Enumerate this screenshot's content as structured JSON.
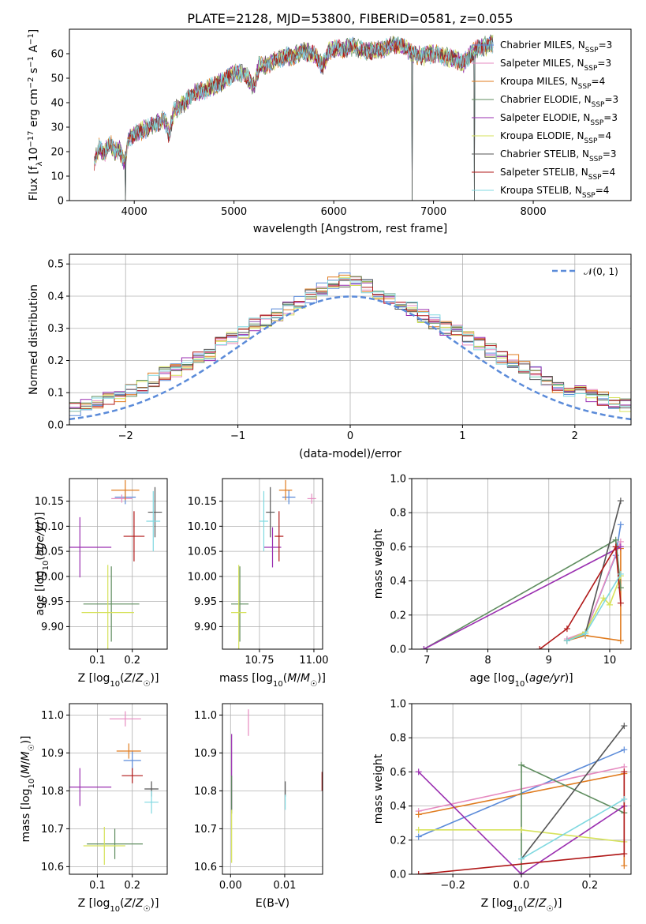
{
  "colors": {
    "chabrier_miles": "#5b8bd9",
    "salpeter_miles": "#e68ac0",
    "kroupa_miles": "#e07b1e",
    "chabrier_elodie": "#5f8d5f",
    "salpeter_elodie": "#9a2fb0",
    "kroupa_elodie": "#d6e25a",
    "chabrier_stelib": "#555555",
    "salpeter_stelib": "#b01818",
    "kroupa_stelib": "#7fd8e0",
    "gauss": "#5b8bd9"
  },
  "chart_data": [
    {
      "id": "spectrum",
      "type": "line",
      "title": "PLATE=2128, MJD=53800, FIBERID=0581, z=0.055",
      "xlabel": "wavelength [Angstrom, rest frame]",
      "ylabel": "Flux [f_λ 10^-17 erg cm^-2 s^-1 A^-1]",
      "xlim": [
        3350,
        8980
      ],
      "ylim": [
        0,
        70
      ],
      "xticks": [
        "4000",
        "5000",
        "6000",
        "7000",
        "8000"
      ],
      "yticks": [
        "0",
        "10",
        "20",
        "30",
        "40",
        "50",
        "60"
      ],
      "grid": false,
      "legend_position": "top-right",
      "continuum_points": [
        [
          3600,
          16
        ],
        [
          3650,
          22
        ],
        [
          3700,
          19
        ],
        [
          3750,
          24
        ],
        [
          3800,
          20
        ],
        [
          3850,
          21
        ],
        [
          3900,
          15
        ],
        [
          3950,
          26
        ],
        [
          4000,
          27
        ],
        [
          4100,
          29
        ],
        [
          4200,
          31
        ],
        [
          4300,
          33
        ],
        [
          4350,
          27
        ],
        [
          4400,
          37
        ],
        [
          4500,
          40
        ],
        [
          4600,
          44
        ],
        [
          4700,
          45
        ],
        [
          4800,
          47
        ],
        [
          4900,
          49
        ],
        [
          5000,
          52
        ],
        [
          5100,
          52
        ],
        [
          5175,
          48
        ],
        [
          5200,
          46
        ],
        [
          5250,
          55
        ],
        [
          5300,
          55
        ],
        [
          5400,
          57
        ],
        [
          5500,
          59
        ],
        [
          5600,
          59
        ],
        [
          5700,
          61
        ],
        [
          5800,
          60
        ],
        [
          5890,
          55
        ],
        [
          5950,
          61
        ],
        [
          6000,
          62
        ],
        [
          6100,
          62
        ],
        [
          6200,
          63
        ],
        [
          6300,
          61
        ],
        [
          6400,
          61
        ],
        [
          6500,
          62
        ],
        [
          6563,
          63
        ],
        [
          6600,
          64
        ],
        [
          6700,
          63
        ],
        [
          6800,
          60
        ],
        [
          6900,
          59
        ],
        [
          7000,
          60
        ],
        [
          7100,
          59
        ],
        [
          7200,
          58
        ],
        [
          7300,
          56
        ],
        [
          7400,
          61
        ],
        [
          7500,
          63
        ],
        [
          7600,
          64
        ]
      ],
      "features": [
        {
          "x": 3910,
          "y": 0
        },
        {
          "x": 6785,
          "y": 0
        },
        {
          "x": 7410,
          "y": 0
        }
      ],
      "series": [
        {
          "name": "Chabrier MILES, N_SSP=3",
          "label_main": "Chabrier MILES, N",
          "label_sub": "SSP",
          "label_end": "=3",
          "color_key": "chabrier_miles"
        },
        {
          "name": "Salpeter MILES, N_SSP=3",
          "label_main": "Salpeter MILES, N",
          "label_sub": "SSP",
          "label_end": "=3",
          "color_key": "salpeter_miles"
        },
        {
          "name": "Kroupa MILES, N_SSP=4",
          "label_main": "Kroupa MILES, N",
          "label_sub": "SSP",
          "label_end": "=4",
          "color_key": "kroupa_miles"
        },
        {
          "name": "Chabrier ELODIE, N_SSP=3",
          "label_main": "Chabrier ELODIE, N",
          "label_sub": "SSP",
          "label_end": "=3",
          "color_key": "chabrier_elodie"
        },
        {
          "name": "Salpeter ELODIE, N_SSP=3",
          "label_main": "Salpeter ELODIE, N",
          "label_sub": "SSP",
          "label_end": "=3",
          "color_key": "salpeter_elodie"
        },
        {
          "name": "Kroupa ELODIE, N_SSP=4",
          "label_main": "Kroupa ELODIE, N",
          "label_sub": "SSP",
          "label_end": "=4",
          "color_key": "kroupa_elodie"
        },
        {
          "name": "Chabrier STELIB, N_SSP=3",
          "label_main": "Chabrier STELIB, N",
          "label_sub": "SSP",
          "label_end": "=3",
          "color_key": "chabrier_stelib"
        },
        {
          "name": "Salpeter STELIB, N_SSP=4",
          "label_main": "Salpeter STELIB, N",
          "label_sub": "SSP",
          "label_end": "=4",
          "color_key": "salpeter_stelib"
        },
        {
          "name": "Kroupa STELIB, N_SSP=4",
          "label_main": "Kroupa STELIB, N",
          "label_sub": "SSP",
          "label_end": "=4",
          "color_key": "kroupa_stelib"
        }
      ]
    },
    {
      "id": "residuals",
      "type": "line",
      "xlabel": "(data-model)/error",
      "ylabel": "Normed distribution",
      "xlim": [
        -2.5,
        2.5
      ],
      "ylim": [
        0,
        0.53
      ],
      "xticks": [
        "−2",
        "−1",
        "0",
        "1",
        "2"
      ],
      "yticks": [
        "0.0",
        "0.1",
        "0.2",
        "0.3",
        "0.4",
        "0.5"
      ],
      "grid": true,
      "legend_position": "top-right",
      "legend_label": "𝒩(0, 1)",
      "bin_width": 0.1,
      "histogram_values": [
        0.02,
        0.02,
        0.03,
        0.03,
        0.04,
        0.05,
        0.06,
        0.07,
        0.08,
        0.09,
        0.11,
        0.12,
        0.14,
        0.16,
        0.17,
        0.19,
        0.21,
        0.22,
        0.25,
        0.27,
        0.29,
        0.31,
        0.32,
        0.34,
        0.36,
        0.38,
        0.4,
        0.42,
        0.44,
        0.45,
        0.44,
        0.43,
        0.41,
        0.39,
        0.38,
        0.36,
        0.34,
        0.32,
        0.3,
        0.29,
        0.27,
        0.25,
        0.23,
        0.21,
        0.2,
        0.18,
        0.16,
        0.14,
        0.12,
        0.11,
        0.1,
        0.09,
        0.08,
        0.07,
        0.06,
        0.05,
        0.05,
        0.04,
        0.03,
        0.03
      ]
    },
    {
      "id": "age-vs-z",
      "type": "scatter",
      "xlabel": "Z [log10(Z/Z☉)]",
      "ylabel": "age [log10(age/yr)]",
      "xlim": [
        0.02,
        0.3
      ],
      "ylim": [
        9.855,
        10.195
      ],
      "xticks": [
        "0.1",
        "0.2"
      ],
      "yticks": [
        "9.90",
        "9.95",
        "10.00",
        "10.05",
        "10.10",
        "10.15"
      ],
      "grid": true,
      "points": [
        {
          "color_key": "chabrier_miles",
          "x": 0.18,
          "y": 10.158,
          "xerr": 0.03,
          "yerr": 0.014
        },
        {
          "color_key": "salpeter_miles",
          "x": 0.17,
          "y": 10.155,
          "xerr": 0.03,
          "yerr": 0.008
        },
        {
          "color_key": "kroupa_miles",
          "x": 0.18,
          "y": 10.172,
          "xerr": 0.04,
          "yerr": 0.02
        },
        {
          "color_key": "chabrier_elodie",
          "x": 0.14,
          "y": 9.945,
          "xerr": 0.08,
          "yerr": 0.075
        },
        {
          "color_key": "salpeter_elodie",
          "x": 0.05,
          "y": 10.058,
          "xerr": 0.09,
          "yerr": 0.06
        },
        {
          "color_key": "kroupa_elodie",
          "x": 0.13,
          "y": 9.928,
          "xerr": 0.075,
          "yerr": 0.095
        },
        {
          "color_key": "chabrier_stelib",
          "x": 0.265,
          "y": 10.128,
          "xerr": 0.02,
          "yerr": 0.05
        },
        {
          "color_key": "salpeter_stelib",
          "x": 0.205,
          "y": 10.08,
          "xerr": 0.03,
          "yerr": 0.05
        },
        {
          "color_key": "kroupa_stelib",
          "x": 0.26,
          "y": 10.11,
          "xerr": 0.02,
          "yerr": 0.06
        }
      ]
    },
    {
      "id": "age-vs-mass",
      "type": "scatter",
      "xlabel": "mass [log10(M/M☉)]",
      "ylabel": "",
      "xlim": [
        10.58,
        11.04
      ],
      "ylim": [
        9.855,
        10.195
      ],
      "xticks": [
        "10.75",
        "11.00"
      ],
      "yticks": [
        "9.90",
        "9.95",
        "10.00",
        "10.05",
        "10.10",
        "10.15"
      ],
      "grid": true,
      "points": [
        {
          "color_key": "chabrier_miles",
          "x": 10.885,
          "y": 10.158,
          "xerr": 0.03,
          "yerr": 0.014
        },
        {
          "color_key": "salpeter_miles",
          "x": 10.99,
          "y": 10.155,
          "xerr": 0.02,
          "yerr": 0.01
        },
        {
          "color_key": "kroupa_miles",
          "x": 10.87,
          "y": 10.172,
          "xerr": 0.03,
          "yerr": 0.02
        },
        {
          "color_key": "chabrier_elodie",
          "x": 10.66,
          "y": 9.945,
          "xerr": 0.04,
          "yerr": 0.075
        },
        {
          "color_key": "salpeter_elodie",
          "x": 10.81,
          "y": 10.058,
          "xerr": 0.04,
          "yerr": 0.04
        },
        {
          "color_key": "kroupa_elodie",
          "x": 10.655,
          "y": 9.928,
          "xerr": 0.035,
          "yerr": 0.095
        },
        {
          "color_key": "chabrier_stelib",
          "x": 10.8,
          "y": 10.128,
          "xerr": 0.02,
          "yerr": 0.05
        },
        {
          "color_key": "salpeter_stelib",
          "x": 10.84,
          "y": 10.08,
          "xerr": 0.02,
          "yerr": 0.05
        },
        {
          "color_key": "kroupa_stelib",
          "x": 10.77,
          "y": 10.11,
          "xerr": 0.02,
          "yerr": 0.06
        }
      ]
    },
    {
      "id": "mass-weight-vs-age",
      "type": "line",
      "xlabel": "age [log10(age/yr)]",
      "ylabel": "mass weight",
      "xlim": [
        6.75,
        10.35
      ],
      "ylim": [
        0,
        1
      ],
      "xticks": [
        "7",
        "8",
        "9",
        "10"
      ],
      "yticks": [
        "0.0",
        "0.2",
        "0.4",
        "0.6",
        "0.8",
        "1.0"
      ],
      "grid": true,
      "series": [
        {
          "color_key": "chabrier_miles",
          "x": [
            9.3,
            9.6,
            10.1,
            10.18
          ],
          "y": [
            0.05,
            0.1,
            0.55,
            0.73
          ]
        },
        {
          "color_key": "salpeter_miles",
          "x": [
            9.3,
            9.6,
            10.18
          ],
          "y": [
            0.06,
            0.1,
            0.63
          ]
        },
        {
          "color_key": "kroupa_miles",
          "x": [
            9.3,
            9.6,
            10.18,
            10.18
          ],
          "y": [
            0.05,
            0.08,
            0.05,
            0.59
          ]
        },
        {
          "color_key": "chabrier_elodie",
          "x": [
            6.95,
            10.1,
            10.18
          ],
          "y": [
            0.0,
            0.64,
            0.36
          ]
        },
        {
          "color_key": "salpeter_elodie",
          "x": [
            6.95,
            10.18
          ],
          "y": [
            0.0,
            0.6
          ]
        },
        {
          "color_key": "kroupa_elodie",
          "x": [
            9.3,
            9.6,
            9.9,
            10.0,
            10.18
          ],
          "y": [
            0.05,
            0.1,
            0.3,
            0.26,
            0.43
          ]
        },
        {
          "color_key": "chabrier_stelib",
          "x": [
            9.3,
            9.6,
            10.18
          ],
          "y": [
            0.05,
            0.09,
            0.87
          ]
        },
        {
          "color_key": "salpeter_stelib",
          "x": [
            8.85,
            9.3,
            10.1,
            10.18
          ],
          "y": [
            0.0,
            0.12,
            0.6,
            0.27
          ]
        },
        {
          "color_key": "kroupa_stelib",
          "x": [
            9.3,
            9.6,
            10.18
          ],
          "y": [
            0.05,
            0.09,
            0.44
          ]
        }
      ]
    },
    {
      "id": "mass-vs-z",
      "type": "scatter",
      "xlabel": "Z [log10(Z/Z☉)]",
      "ylabel": "mass [log10(M/M☉)]",
      "xlim": [
        0.02,
        0.3
      ],
      "ylim": [
        10.58,
        11.03
      ],
      "xticks": [
        "0.1",
        "0.2"
      ],
      "yticks": [
        "10.6",
        "10.7",
        "10.8",
        "10.9",
        "11.0"
      ],
      "grid": true,
      "points": [
        {
          "color_key": "chabrier_miles",
          "x": 0.2,
          "y": 10.88,
          "xerr": 0.025,
          "yerr": 0.025
        },
        {
          "color_key": "salpeter_miles",
          "x": 0.18,
          "y": 10.99,
          "xerr": 0.045,
          "yerr": 0.02
        },
        {
          "color_key": "kroupa_miles",
          "x": 0.19,
          "y": 10.905,
          "xerr": 0.035,
          "yerr": 0.02
        },
        {
          "color_key": "chabrier_elodie",
          "x": 0.15,
          "y": 10.66,
          "xerr": 0.08,
          "yerr": 0.04
        },
        {
          "color_key": "salpeter_elodie",
          "x": 0.05,
          "y": 10.81,
          "xerr": 0.09,
          "yerr": 0.05
        },
        {
          "color_key": "kroupa_elodie",
          "x": 0.12,
          "y": 10.655,
          "xerr": 0.06,
          "yerr": 0.05
        },
        {
          "color_key": "chabrier_stelib",
          "x": 0.255,
          "y": 10.805,
          "xerr": 0.02,
          "yerr": 0.02
        },
        {
          "color_key": "salpeter_stelib",
          "x": 0.2,
          "y": 10.84,
          "xerr": 0.03,
          "yerr": 0.02
        },
        {
          "color_key": "kroupa_stelib",
          "x": 0.255,
          "y": 10.77,
          "xerr": 0.02,
          "yerr": 0.03
        }
      ]
    },
    {
      "id": "mass-vs-ebv",
      "type": "scatter",
      "xlabel": "E(B-V)",
      "ylabel": "",
      "xlim": [
        -0.0015,
        0.017
      ],
      "ylim": [
        10.58,
        11.03
      ],
      "xticks": [
        "0.00",
        "0.01"
      ],
      "yticks": [
        "10.6",
        "10.7",
        "10.8",
        "10.9",
        "11.0"
      ],
      "grid": true,
      "points": [
        {
          "color_key": "salpeter_miles",
          "x": 0.0033,
          "y": 10.98,
          "xerr": 0,
          "yerr": 0.035
        },
        {
          "color_key": "salpeter_elodie",
          "x": 0.0002,
          "y": 10.85,
          "xerr": 0,
          "yerr": 0.1
        },
        {
          "color_key": "chabrier_elodie",
          "x": 0.0002,
          "y": 10.79,
          "xerr": 0,
          "yerr": 0.05
        },
        {
          "color_key": "kroupa_elodie",
          "x": 0.0002,
          "y": 10.68,
          "xerr": 0,
          "yerr": 0.07
        },
        {
          "color_key": "chabrier_stelib",
          "x": 0.0101,
          "y": 10.805,
          "xerr": 0,
          "yerr": 0.02
        },
        {
          "color_key": "kroupa_stelib",
          "x": 0.0101,
          "y": 10.77,
          "xerr": 0,
          "yerr": 0.02
        },
        {
          "color_key": "salpeter_stelib",
          "x": 0.0169,
          "y": 10.825,
          "xerr": 0,
          "yerr": 0.025
        }
      ]
    },
    {
      "id": "mass-weight-vs-z",
      "type": "line",
      "xlabel": "Z [log10(Z/Z☉)]",
      "ylabel": "mass weight",
      "xlim": [
        -0.32,
        0.32
      ],
      "ylim": [
        0,
        1
      ],
      "xticks": [
        "−0.2",
        "0.0",
        "0.2"
      ],
      "yticks": [
        "0.0",
        "0.2",
        "0.4",
        "0.6",
        "0.8",
        "1.0"
      ],
      "grid": true,
      "series": [
        {
          "color_key": "chabrier_miles",
          "x": [
            -0.3,
            0.3
          ],
          "y": [
            0.22,
            0.73
          ]
        },
        {
          "color_key": "salpeter_miles",
          "x": [
            -0.3,
            0.3
          ],
          "y": [
            0.37,
            0.63
          ]
        },
        {
          "color_key": "kroupa_miles",
          "x": [
            -0.3,
            0.3,
            0.3
          ],
          "y": [
            0.35,
            0.59,
            0.05
          ]
        },
        {
          "color_key": "chabrier_elodie",
          "x": [
            0.0,
            0.0,
            0.3
          ],
          "y": [
            0.0,
            0.64,
            0.36
          ]
        },
        {
          "color_key": "salpeter_elodie",
          "x": [
            -0.3,
            0.0,
            0.3
          ],
          "y": [
            0.6,
            0.0,
            0.4
          ]
        },
        {
          "color_key": "kroupa_elodie",
          "x": [
            -0.3,
            0.0,
            0.3
          ],
          "y": [
            0.26,
            0.26,
            0.19
          ]
        },
        {
          "color_key": "chabrier_stelib",
          "x": [
            0.0,
            0.3
          ],
          "y": [
            0.09,
            0.87
          ]
        },
        {
          "color_key": "salpeter_stelib",
          "x": [
            -0.3,
            0.3,
            0.3
          ],
          "y": [
            0.0,
            0.12,
            0.6
          ]
        },
        {
          "color_key": "kroupa_stelib",
          "x": [
            0.0,
            0.3
          ],
          "y": [
            0.09,
            0.44
          ]
        }
      ]
    }
  ]
}
